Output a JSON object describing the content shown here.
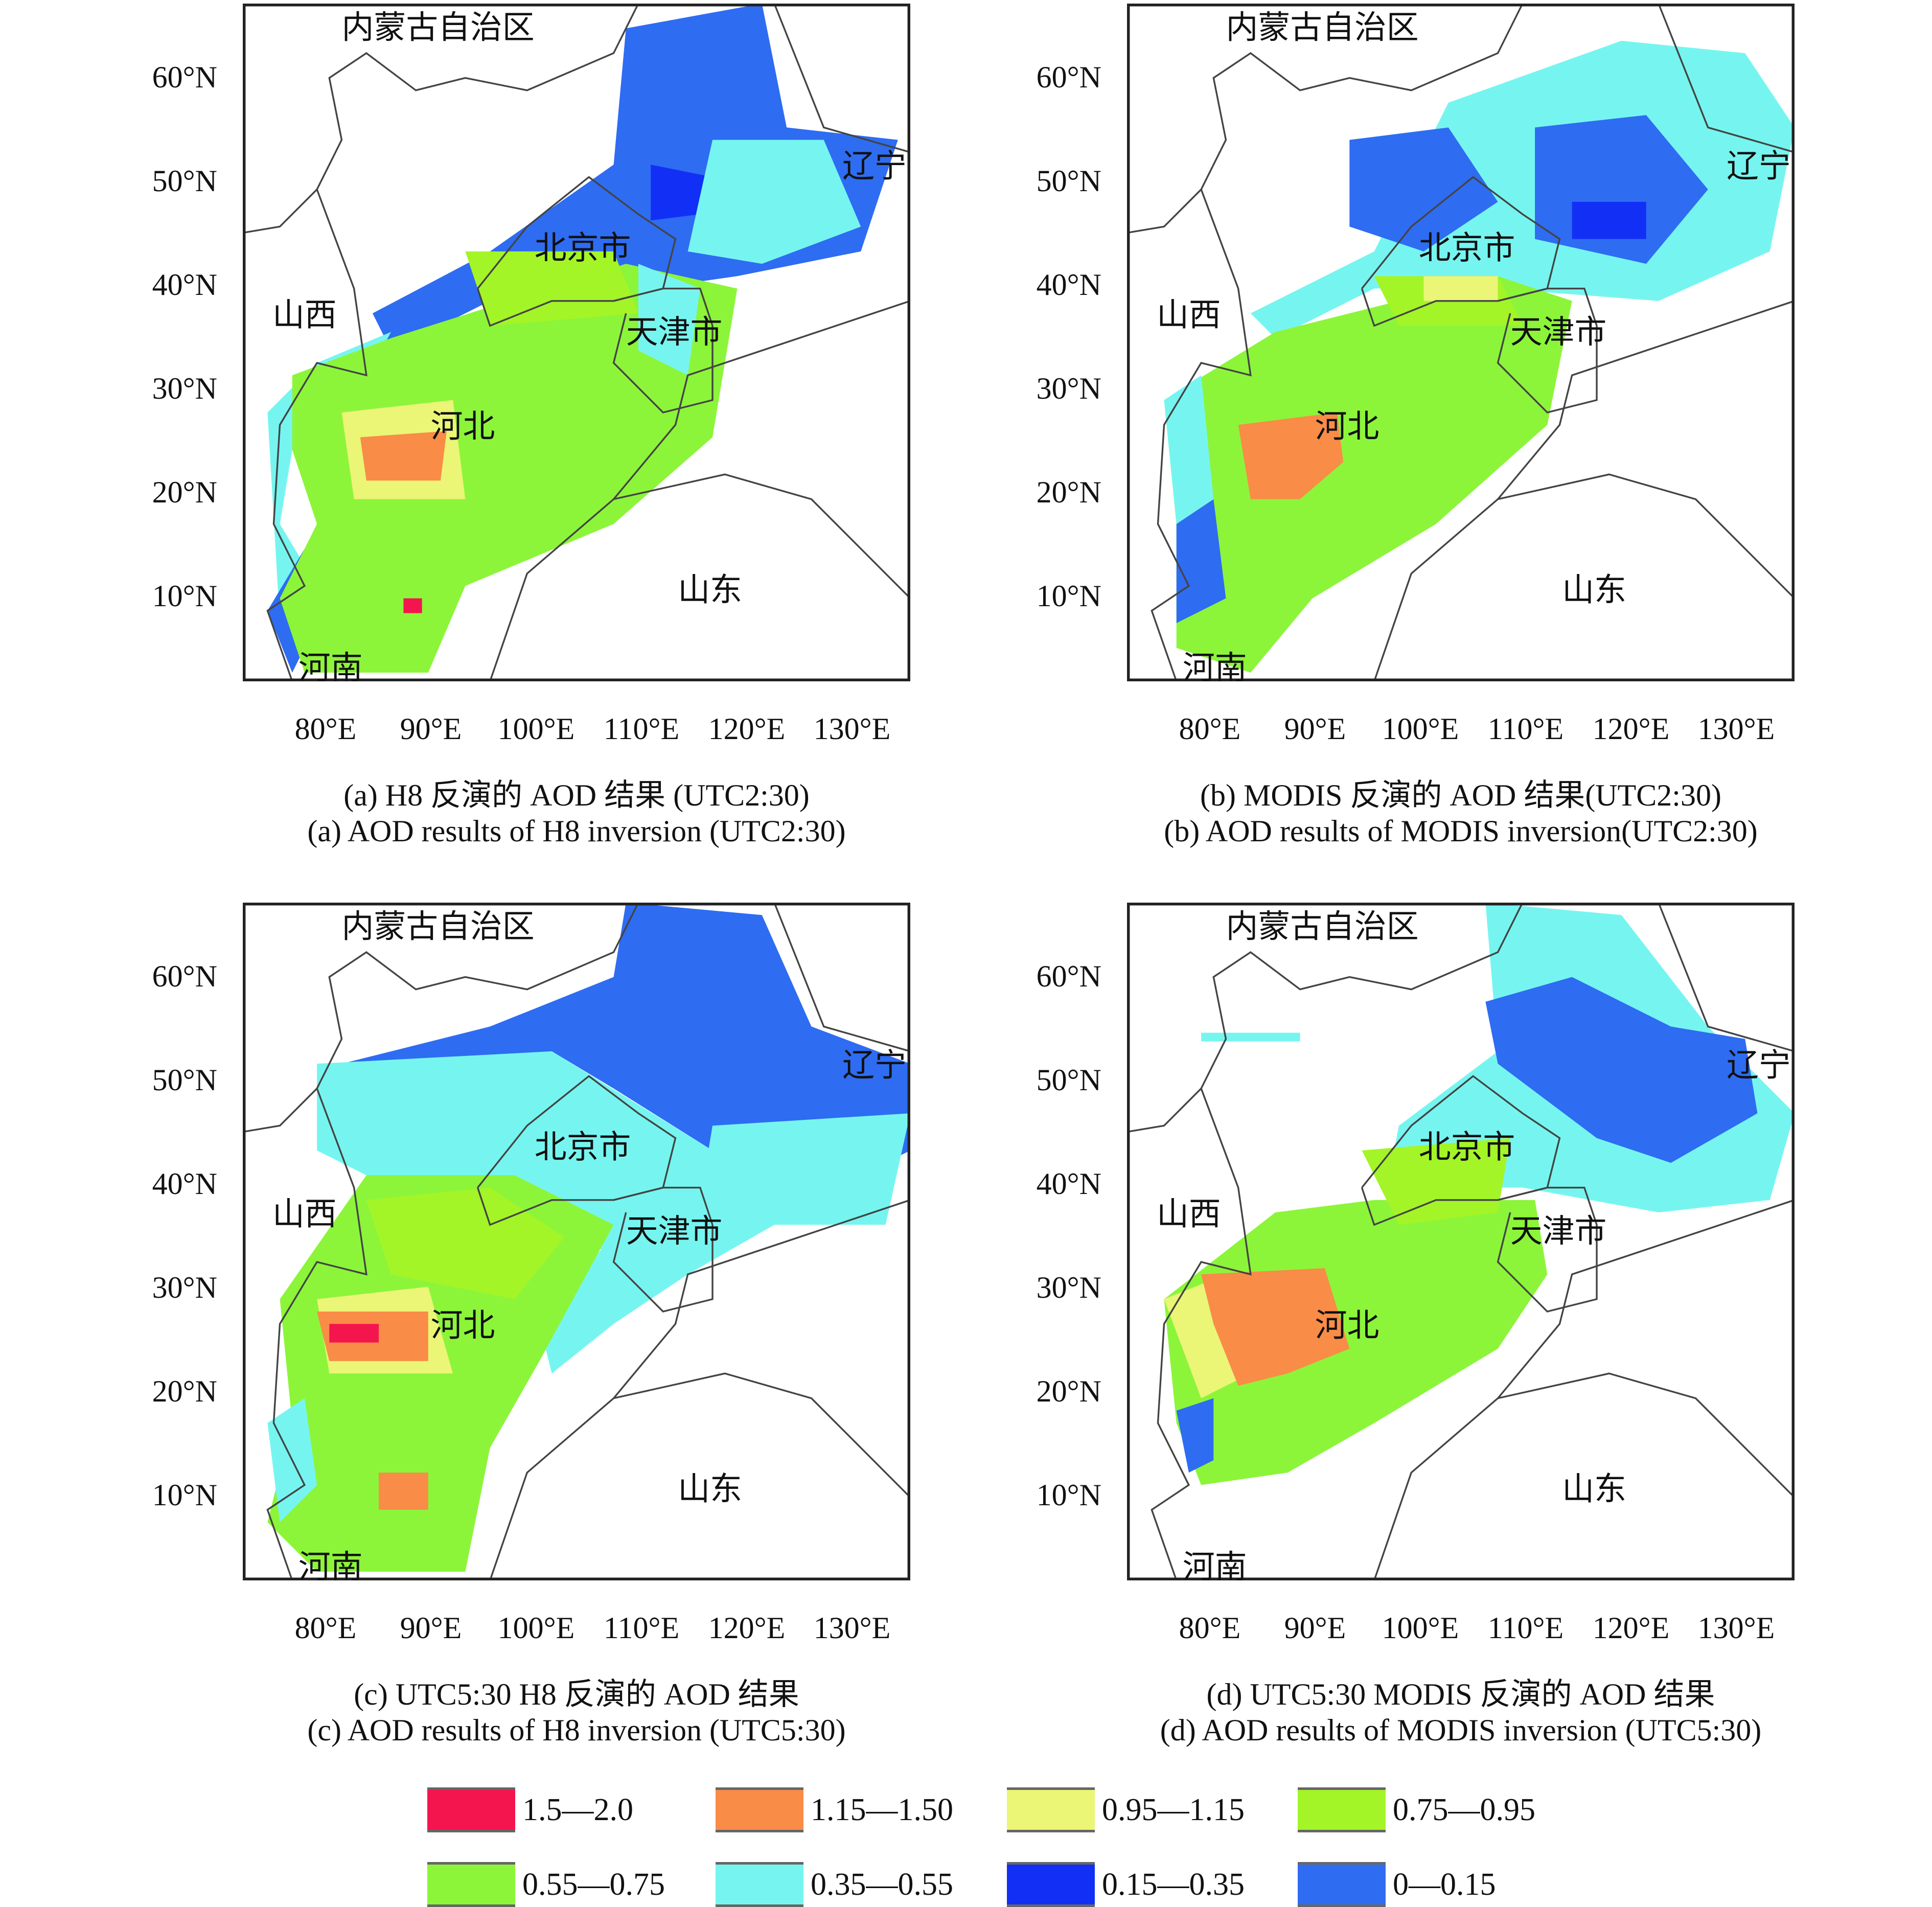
{
  "panels": [
    {
      "id": "a",
      "caption_cn": "(a) H8 反演的 AOD 结果 (UTC2:30)",
      "caption_en": "(a) AOD results of H8 inversion (UTC2:30)"
    },
    {
      "id": "b",
      "caption_cn": "(b) MODIS 反演的 AOD 结果(UTC2:30)",
      "caption_en": "(b) AOD results of MODIS inversion(UTC2:30)"
    },
    {
      "id": "c",
      "caption_cn": "(c) UTC5:30 H8 反演的 AOD 结果",
      "caption_en": "(c) AOD results of H8 inversion (UTC5:30)"
    },
    {
      "id": "d",
      "caption_cn": "(d) UTC5:30 MODIS 反演的 AOD 结果",
      "caption_en": "(d) AOD results of MODIS inversion (UTC5:30)"
    }
  ],
  "axes": {
    "y_ticks": [
      "60°N",
      "50°N",
      "40°N",
      "30°N",
      "20°N",
      "10°N"
    ],
    "x_ticks": [
      "80°E",
      "90°E",
      "100°E",
      "110°E",
      "120°E",
      "130°E"
    ]
  },
  "place_labels": {
    "inner_mongolia": "内蒙古自治区",
    "liaoning": "辽宁",
    "beijing": "北京市",
    "tianjin": "天津市",
    "shanxi": "山西",
    "hebei": "河北",
    "shandong": "山东",
    "henan": "河南"
  },
  "legend": [
    {
      "label": "1.5—2.0",
      "color": "#f5154e"
    },
    {
      "label": "1.15—1.50",
      "color": "#f98c47"
    },
    {
      "label": "0.95—1.15",
      "color": "#ebf576"
    },
    {
      "label": "0.75—0.95",
      "color": "#a3f527"
    },
    {
      "label": "0.55—0.75",
      "color": "#8cf53a"
    },
    {
      "label": "0.35—0.55",
      "color": "#76f5f0"
    },
    {
      "label": "0.15—0.35",
      "color": "#1230f5"
    },
    {
      "label": "0—0.15",
      "color": "#2e6cf2"
    }
  ]
}
